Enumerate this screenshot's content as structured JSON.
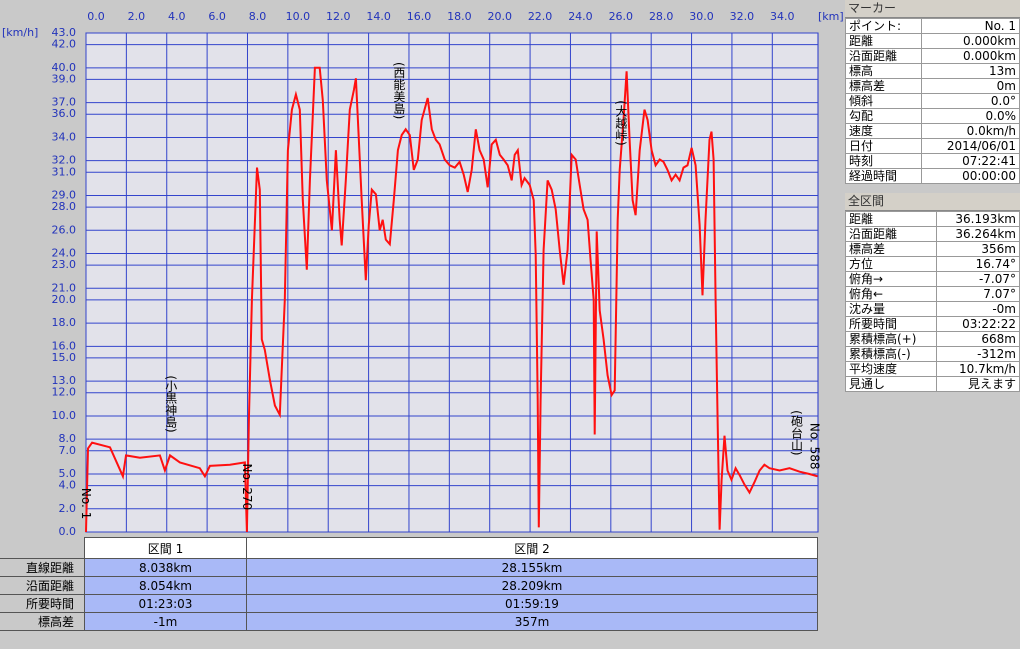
{
  "chart_data": {
    "type": "line",
    "color": "#ff1010",
    "grid": true,
    "x_label": "[km]",
    "y_label": "[km/h]",
    "xlim": [
      0,
      36.264
    ],
    "ylim": [
      0,
      43
    ],
    "xticks": [
      {
        "value": 0,
        "label": "0.0"
      },
      {
        "value": 2,
        "label": "2.0"
      },
      {
        "value": 4,
        "label": "4.0"
      },
      {
        "value": 6,
        "label": "6.0"
      },
      {
        "value": 8,
        "label": "8.0"
      },
      {
        "value": 10,
        "label": "10.0"
      },
      {
        "value": 12,
        "label": "12.0"
      },
      {
        "value": 14,
        "label": "14.0"
      },
      {
        "value": 16,
        "label": "16.0"
      },
      {
        "value": 18,
        "label": "18.0"
      },
      {
        "value": 20,
        "label": "20.0"
      },
      {
        "value": 22,
        "label": "22.0"
      },
      {
        "value": 24,
        "label": "24.0"
      },
      {
        "value": 26,
        "label": "26.0"
      },
      {
        "value": 28,
        "label": "28.0"
      },
      {
        "value": 30,
        "label": "30.0"
      },
      {
        "value": 32,
        "label": "32.0"
      },
      {
        "value": 34,
        "label": "34.0"
      }
    ],
    "yticks": [
      {
        "value": 0,
        "label": "0.0"
      },
      {
        "value": 2,
        "label": "2.0"
      },
      {
        "value": 4,
        "label": "4.0"
      },
      {
        "value": 5,
        "label": "5.0"
      },
      {
        "value": 7,
        "label": "7.0"
      },
      {
        "value": 8,
        "label": "8.0"
      },
      {
        "value": 10,
        "label": "10.0"
      },
      {
        "value": 12,
        "label": "12.0"
      },
      {
        "value": 13,
        "label": "13.0"
      },
      {
        "value": 15,
        "label": "15.0"
      },
      {
        "value": 16,
        "label": "16.0"
      },
      {
        "value": 18,
        "label": "18.0"
      },
      {
        "value": 20,
        "label": "20.0"
      },
      {
        "value": 21,
        "label": "21.0"
      },
      {
        "value": 23,
        "label": "23.0"
      },
      {
        "value": 24,
        "label": "24.0"
      },
      {
        "value": 26,
        "label": "26.0"
      },
      {
        "value": 28,
        "label": "28.0"
      },
      {
        "value": 29,
        "label": "29.0"
      },
      {
        "value": 31,
        "label": "31.0"
      },
      {
        "value": 32,
        "label": "32.0"
      },
      {
        "value": 34,
        "label": "34.0"
      },
      {
        "value": 36,
        "label": "36.0"
      },
      {
        "value": 37,
        "label": "37.0"
      },
      {
        "value": 39,
        "label": "39.0"
      },
      {
        "value": 40,
        "label": "40.0"
      },
      {
        "value": 42,
        "label": "42.0"
      },
      {
        "value": 43,
        "label": "43.0"
      }
    ],
    "x": [
      0,
      0.1,
      0.3,
      1.19,
      1.83,
      1.98,
      2.67,
      3.66,
      3.91,
      4.16,
      4.65,
      5.64,
      5.89,
      6.14,
      7.13,
      7.87,
      7.97,
      8.07,
      8.22,
      8.47,
      8.61,
      8.71,
      8.86,
      9.11,
      9.36,
      9.6,
      9.85,
      10.0,
      10.2,
      10.4,
      10.59,
      10.74,
      10.94,
      11.09,
      11.34,
      11.58,
      11.73,
      11.93,
      12.18,
      12.38,
      12.57,
      12.67,
      12.87,
      13.07,
      13.27,
      13.37,
      13.47,
      13.66,
      13.86,
      14.01,
      14.16,
      14.36,
      14.55,
      14.7,
      14.85,
      15.05,
      15.25,
      15.45,
      15.64,
      15.84,
      16.04,
      16.24,
      16.44,
      16.63,
      16.93,
      17.13,
      17.33,
      17.52,
      17.77,
      18.02,
      18.27,
      18.51,
      18.71,
      18.91,
      19.11,
      19.31,
      19.5,
      19.7,
      19.9,
      20.1,
      20.3,
      20.5,
      20.69,
      20.89,
      21.09,
      21.24,
      21.39,
      21.58,
      21.73,
      21.98,
      22.18,
      22.28,
      22.38,
      22.43,
      22.52,
      22.67,
      22.87,
      23.07,
      23.27,
      23.47,
      23.66,
      23.86,
      24.06,
      24.26,
      24.46,
      24.65,
      24.85,
      25.0,
      25.15,
      25.2,
      25.3,
      25.45,
      25.64,
      25.84,
      26.04,
      26.19,
      26.34,
      26.44,
      26.63,
      26.78,
      26.93,
      27.08,
      27.23,
      27.43,
      27.67,
      27.82,
      28.02,
      28.22,
      28.42,
      28.61,
      28.81,
      29.01,
      29.21,
      29.41,
      29.6,
      29.8,
      30.0,
      30.2,
      30.4,
      30.54,
      30.69,
      30.89,
      30.99,
      31.09,
      31.19,
      31.29,
      31.39,
      31.49,
      31.63,
      31.78,
      31.98,
      32.18,
      32.38,
      32.62,
      32.87,
      33.12,
      33.37,
      33.61,
      33.86,
      34.36,
      34.85,
      35.35,
      35.84,
      36.24
    ],
    "values": [
      0,
      7.2,
      7.7,
      7.3,
      4.8,
      6.6,
      6.4,
      6.6,
      5.3,
      6.6,
      6.0,
      5.5,
      4.8,
      5.7,
      5.8,
      6.0,
      0,
      9.7,
      20.0,
      31.4,
      29.5,
      16.6,
      15.7,
      13.1,
      10.9,
      10.1,
      20.0,
      32.9,
      36.4,
      37.7,
      36.4,
      28.6,
      22.6,
      30.3,
      40.0,
      40.0,
      37.2,
      30.3,
      26.0,
      32.9,
      26.9,
      24.7,
      30.3,
      36.4,
      38.1,
      39.1,
      35.5,
      28.6,
      21.7,
      26.5,
      29.5,
      29.1,
      26.0,
      26.9,
      25.2,
      24.8,
      28.6,
      32.9,
      34.2,
      34.7,
      34.2,
      31.2,
      32.1,
      35.5,
      37.4,
      34.7,
      33.8,
      33.4,
      32.1,
      31.6,
      31.4,
      31.9,
      30.8,
      29.3,
      31.2,
      34.7,
      32.9,
      32.1,
      29.7,
      33.4,
      33.8,
      32.5,
      32.1,
      31.6,
      30.3,
      32.5,
      32.9,
      29.9,
      30.5,
      29.9,
      28.6,
      23.9,
      11.4,
      0.4,
      11.4,
      24.3,
      30.3,
      29.5,
      27.8,
      24.3,
      21.3,
      24.3,
      32.5,
      32.1,
      29.9,
      27.8,
      26.9,
      23.4,
      20.0,
      8.4,
      25.9,
      19.1,
      16.6,
      13.5,
      11.8,
      12.2,
      26.9,
      31.2,
      35.5,
      39.7,
      33.8,
      28.6,
      27.3,
      32.9,
      36.4,
      35.5,
      32.9,
      31.6,
      32.1,
      31.9,
      31.2,
      30.3,
      30.8,
      30.3,
      31.4,
      31.6,
      33.1,
      31.6,
      26.5,
      20.4,
      26.9,
      33.8,
      34.5,
      32.1,
      20.0,
      9.7,
      0.2,
      4.5,
      8.3,
      5.3,
      4.5,
      5.5,
      4.9,
      4.1,
      3.4,
      4.3,
      5.3,
      5.8,
      5.5,
      5.3,
      5.5,
      5.2,
      5.0,
      4.8
    ],
    "annotations": [
      {
        "text": "(小黒神島)",
        "x": 4.2,
        "y": 13.5
      },
      {
        "text": "(西能美島)",
        "x": 15.5,
        "y": 40.5
      },
      {
        "text": "(大越峠)",
        "x": 26.5,
        "y": 37.2
      },
      {
        "text": "(砲台山)",
        "x": 35.2,
        "y": 10.5
      },
      {
        "text": "No. 1",
        "x": 0,
        "y": 3.8
      },
      {
        "text": "No. 270",
        "x": 7.97,
        "y": 5.9
      },
      {
        "text": "No. 588",
        "x": 36.1,
        "y": 9.4
      }
    ]
  },
  "segments_table": {
    "headers": [
      "区間 1",
      "区間 2"
    ],
    "rows": [
      {
        "label": "直線距離",
        "values": [
          "8.038km",
          "28.155km"
        ]
      },
      {
        "label": "沿面距離",
        "values": [
          "8.054km",
          "28.209km"
        ]
      },
      {
        "label": "所要時間",
        "values": [
          "01:23:03",
          "01:59:19"
        ]
      },
      {
        "label": "標高差",
        "values": [
          "-1m",
          "357m"
        ]
      }
    ]
  },
  "marker_panel": {
    "title": "マーカー",
    "rows": [
      [
        "ポイント:",
        "No. 1"
      ],
      [
        "距離",
        "0.000km"
      ],
      [
        "沿面距離",
        "0.000km"
      ],
      [
        "標高",
        "13m"
      ],
      [
        "標高差",
        "0m"
      ],
      [
        "傾斜",
        "0.0°"
      ],
      [
        "勾配",
        "0.0%"
      ],
      [
        "速度",
        "0.0km/h"
      ],
      [
        "日付",
        "2014/06/01"
      ],
      [
        "時刻",
        "07:22:41"
      ],
      [
        "経過時間",
        "00:00:00"
      ]
    ]
  },
  "total_panel": {
    "title": "全区間",
    "rows": [
      [
        "距離",
        "36.193km"
      ],
      [
        "沿面距離",
        "36.264km"
      ],
      [
        "標高差",
        "356m"
      ],
      [
        "方位",
        "16.74°"
      ],
      [
        "俯角→",
        "-7.07°"
      ],
      [
        "俯角←",
        "7.07°"
      ],
      [
        "沈み量",
        "-0m"
      ],
      [
        "所要時間",
        "03:22:22"
      ],
      [
        "累積標高(+)",
        "668m"
      ],
      [
        "累積標高(-)",
        "-312m"
      ],
      [
        "平均速度",
        "10.7km/h"
      ],
      [
        "見通し",
        "見えます"
      ]
    ]
  }
}
